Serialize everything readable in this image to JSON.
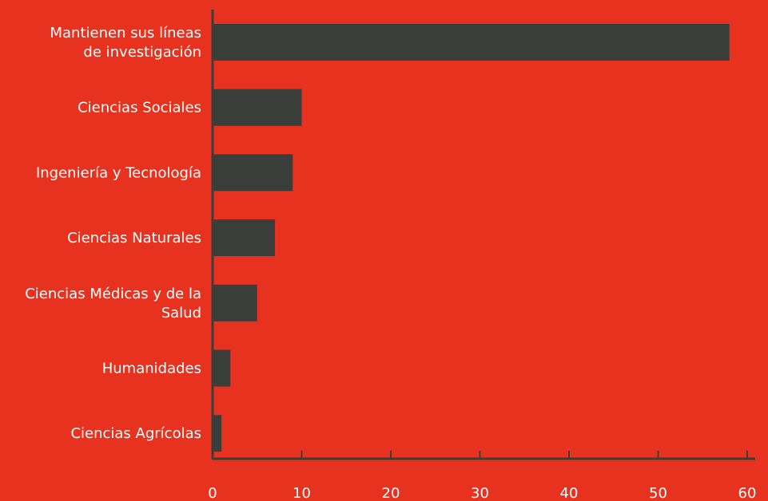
{
  "colors": {
    "background": "#E6321F",
    "bar": "#3A3E3A",
    "axis": "#3A3E3A",
    "text": "#FFFFFF"
  },
  "chart_data": {
    "type": "bar",
    "orientation": "horizontal",
    "categories": [
      [
        "Mantienen sus líneas",
        "de investigación"
      ],
      [
        "Ciencias Sociales"
      ],
      [
        "Ingeniería y Tecnología"
      ],
      [
        "Ciencias Naturales"
      ],
      [
        "Ciencias Médicas y de la",
        "Salud"
      ],
      [
        "Humanidades"
      ],
      [
        "Ciencias Agrícolas"
      ]
    ],
    "values": [
      58,
      10,
      9,
      7,
      5,
      2,
      1
    ],
    "xlim": [
      0,
      60
    ],
    "xticks": [
      "0",
      "10",
      "20",
      "30",
      "40",
      "50",
      "60"
    ],
    "grid": false,
    "legend": "none"
  }
}
